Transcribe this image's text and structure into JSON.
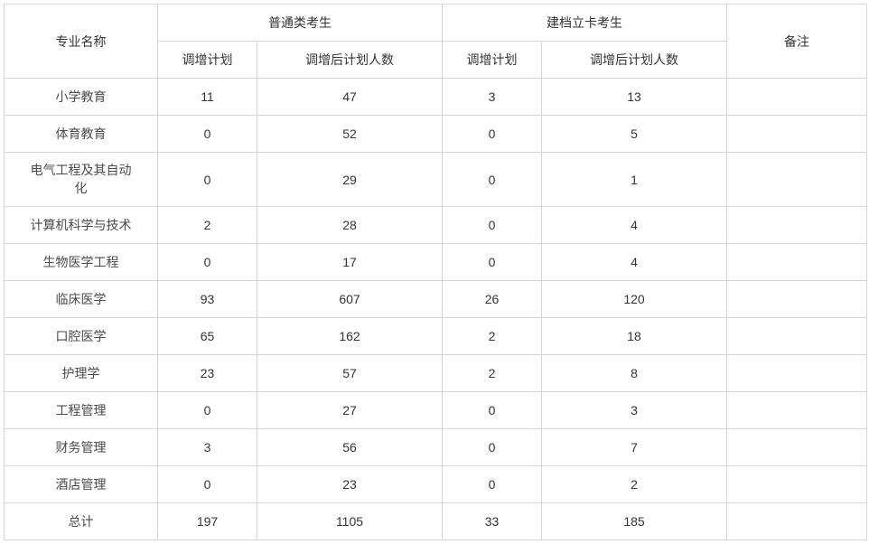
{
  "table": {
    "headers": {
      "major": "专业名称",
      "general_group": "普通类考生",
      "poverty_group": "建档立卡考生",
      "plan_increase": "调增计划",
      "after_increase": "调增后计划人数",
      "remarks": "备注"
    },
    "rows": [
      {
        "major": "小学教育",
        "gen_plan": "11",
        "gen_after": "47",
        "pov_plan": "3",
        "pov_after": "13",
        "remark": ""
      },
      {
        "major": "体育教育",
        "gen_plan": "0",
        "gen_after": "52",
        "pov_plan": "0",
        "pov_after": "5",
        "remark": ""
      },
      {
        "major": "电气工程及其自动化",
        "gen_plan": "0",
        "gen_after": "29",
        "pov_plan": "0",
        "pov_after": "1",
        "remark": ""
      },
      {
        "major": "计算机科学与技术",
        "gen_plan": "2",
        "gen_after": "28",
        "pov_plan": "0",
        "pov_after": "4",
        "remark": ""
      },
      {
        "major": "生物医学工程",
        "gen_plan": "0",
        "gen_after": "17",
        "pov_plan": "0",
        "pov_after": "4",
        "remark": ""
      },
      {
        "major": "临床医学",
        "gen_plan": "93",
        "gen_after": "607",
        "pov_plan": "26",
        "pov_after": "120",
        "remark": ""
      },
      {
        "major": "口腔医学",
        "gen_plan": "65",
        "gen_after": "162",
        "pov_plan": "2",
        "pov_after": "18",
        "remark": ""
      },
      {
        "major": "护理学",
        "gen_plan": "23",
        "gen_after": "57",
        "pov_plan": "2",
        "pov_after": "8",
        "remark": ""
      },
      {
        "major": "工程管理",
        "gen_plan": "0",
        "gen_after": "27",
        "pov_plan": "0",
        "pov_after": "3",
        "remark": ""
      },
      {
        "major": "财务管理",
        "gen_plan": "3",
        "gen_after": "56",
        "pov_plan": "0",
        "pov_after": "7",
        "remark": ""
      },
      {
        "major": "酒店管理",
        "gen_plan": "0",
        "gen_after": "23",
        "pov_plan": "0",
        "pov_after": "2",
        "remark": ""
      }
    ],
    "total": {
      "label": "总计",
      "gen_plan": "197",
      "gen_after": "1105",
      "pov_plan": "33",
      "pov_after": "185",
      "remark": ""
    },
    "style": {
      "border_color": "#d6d6d6",
      "background": "#ffffff",
      "header_text_color": "#333333",
      "cell_text_color": "#4a4a4a",
      "font_size": 14,
      "col_widths": {
        "major": 170,
        "plan": 110,
        "after": 205,
        "remark": 155
      }
    }
  }
}
